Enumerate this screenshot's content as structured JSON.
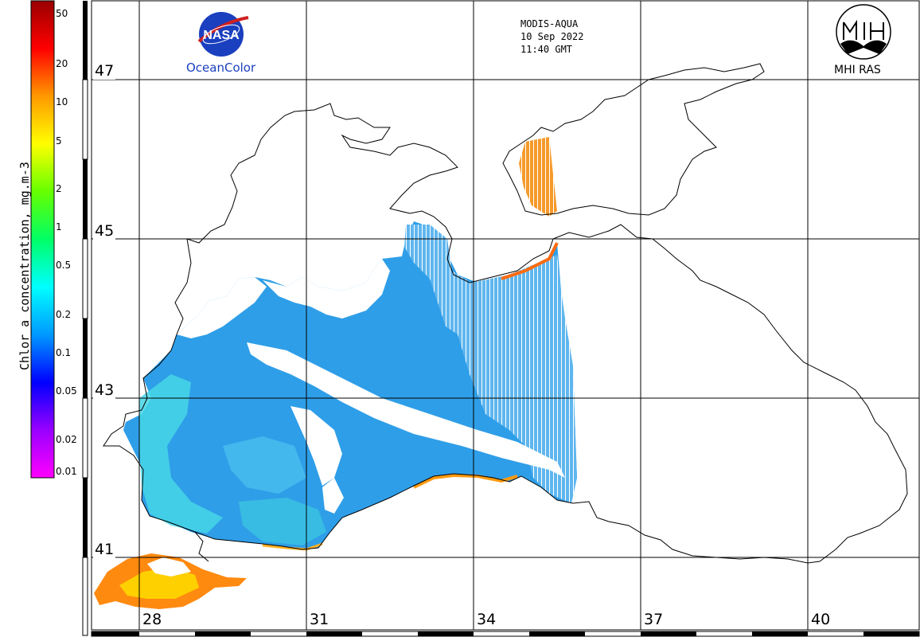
{
  "header": {
    "sensor": "MODIS-AQUA",
    "date": "10 Sep 2022",
    "time": "11:40 GMT"
  },
  "logos": {
    "nasa_label": "OceanColor",
    "nasa_badge": "NASA",
    "mhi_label": "MHI RAS"
  },
  "colorbar": {
    "title": "Chlor_a concentration, mg.m-3",
    "ticks": [
      {
        "label": "50",
        "value": 50
      },
      {
        "label": "20",
        "value": 20
      },
      {
        "label": "10",
        "value": 10
      },
      {
        "label": "5",
        "value": 5
      },
      {
        "label": "2",
        "value": 2
      },
      {
        "label": "1",
        "value": 1
      },
      {
        "label": "0.5",
        "value": 0.5
      },
      {
        "label": "0.2",
        "value": 0.2
      },
      {
        "label": "0.1",
        "value": 0.1
      },
      {
        "label": "0.05",
        "value": 0.05
      },
      {
        "label": "0.02",
        "value": 0.02
      },
      {
        "label": "0.01",
        "value": 0.01
      }
    ],
    "range": [
      0.01,
      60
    ],
    "scale": "log",
    "colors": [
      "#ff00ff",
      "#9900ff",
      "#0000ff",
      "#0099ff",
      "#00ffff",
      "#00ff66",
      "#66ff00",
      "#ffff00",
      "#ff9900",
      "#ff0000",
      "#990000"
    ]
  },
  "grid": {
    "latitudes": [
      {
        "label": "47"
      },
      {
        "label": "45"
      },
      {
        "label": "43"
      },
      {
        "label": "41"
      }
    ],
    "longitudes": [
      {
        "label": "28"
      },
      {
        "label": "31"
      },
      {
        "label": "34"
      },
      {
        "label": "37"
      },
      {
        "label": "40"
      }
    ]
  },
  "colors": {
    "coast": "#000000",
    "water_main": "#2e9be8",
    "water_light": "#4fc9ef",
    "shelf": "#46e2d6",
    "coastal_high": "#ff8a00",
    "coastal_red": "#e01010",
    "azov": "#ff9820"
  }
}
